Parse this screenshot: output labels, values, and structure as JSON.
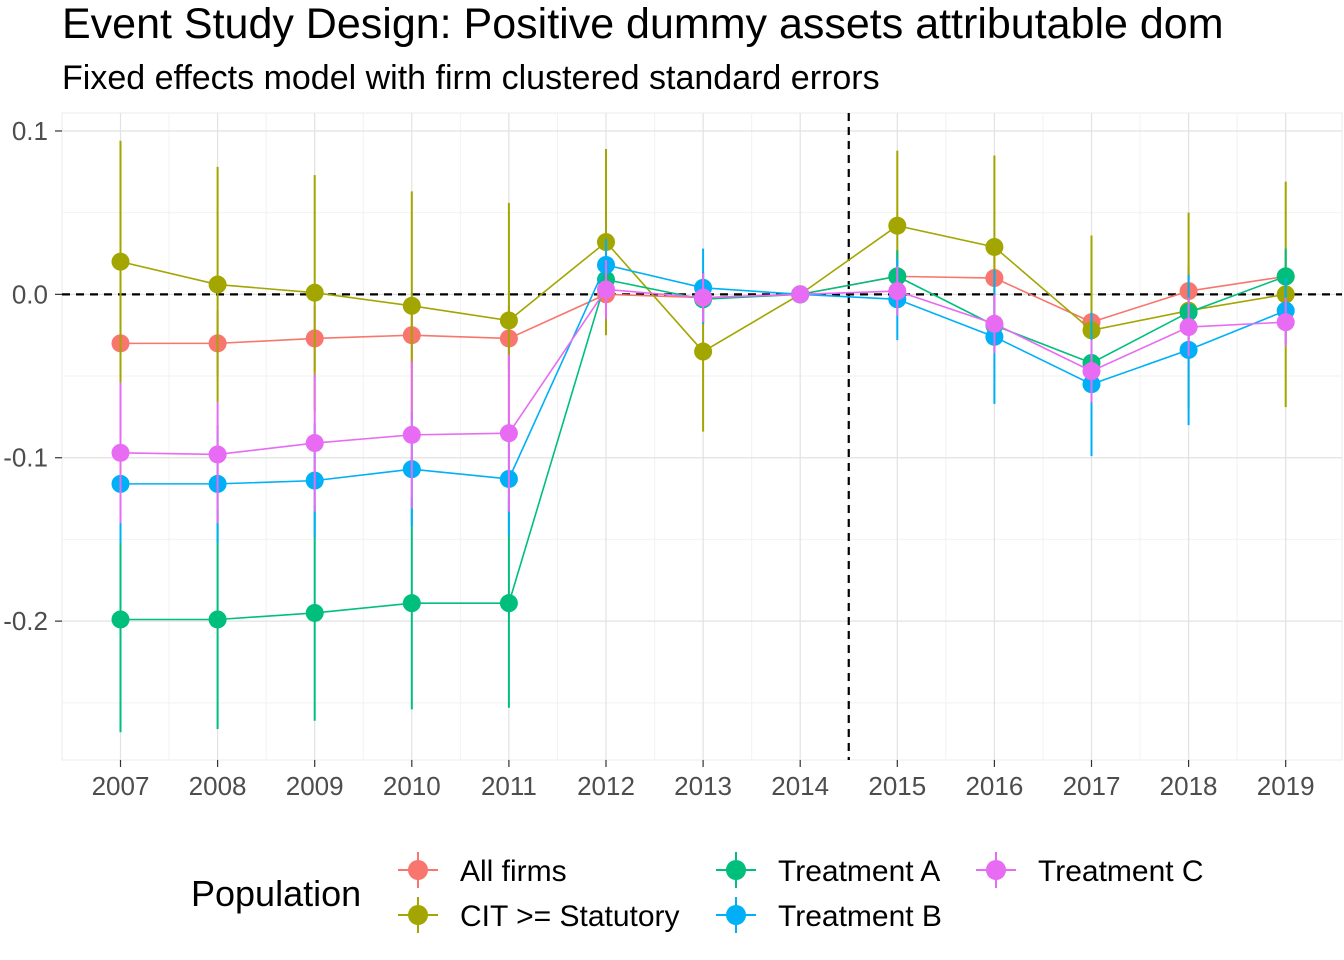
{
  "chart_data": {
    "type": "line",
    "title": "Event Study Design: Positive dummy assets attributable dom",
    "subtitle": "Fixed effects model with firm clustered standard errors",
    "xlabel": "",
    "ylabel": "",
    "categories": [
      "2007",
      "2008",
      "2009",
      "2010",
      "2011",
      "2012",
      "2013",
      "2014",
      "2015",
      "2016",
      "2017",
      "2018",
      "2019"
    ],
    "y_ticks": [
      {
        "value": 0.1,
        "label": "0.1"
      },
      {
        "value": 0.0,
        "label": "0.0"
      },
      {
        "value": -0.1,
        "label": "-0.1"
      },
      {
        "value": -0.2,
        "label": "-0.2"
      }
    ],
    "ylim": [
      -0.285,
      0.111
    ],
    "grid": true,
    "reference_lines": {
      "hline_y": 0,
      "vline_between": [
        "2014",
        "2015"
      ],
      "style": "dashed"
    },
    "legend": {
      "title": "Population",
      "position": "bottom",
      "layout": [
        [
          "All firms",
          "CIT >= Statutory"
        ],
        [
          "Treatment A",
          "Treatment B"
        ],
        [
          "Treatment C"
        ]
      ]
    },
    "series": [
      {
        "name": "All firms",
        "color": "#F8766D",
        "values": [
          -0.03,
          -0.03,
          -0.027,
          -0.025,
          -0.027,
          0.0,
          -0.002,
          0.0,
          0.011,
          0.01,
          -0.017,
          0.002,
          0.011
        ],
        "lower": [
          -0.05,
          -0.05,
          -0.047,
          -0.045,
          -0.047,
          -0.015,
          -0.017,
          0.0,
          -0.005,
          -0.005,
          -0.035,
          -0.013,
          -0.005
        ],
        "upper": [
          -0.01,
          -0.01,
          -0.007,
          -0.005,
          -0.007,
          0.015,
          0.013,
          0.0,
          0.027,
          0.025,
          0.001,
          0.017,
          0.027
        ]
      },
      {
        "name": "CIT >= Statutory",
        "color": "#A3A500",
        "values": [
          0.02,
          0.006,
          0.001,
          -0.007,
          -0.016,
          0.032,
          -0.035,
          0.0,
          0.042,
          0.029,
          -0.022,
          -0.01,
          0.0
        ],
        "lower": [
          -0.054,
          -0.066,
          -0.071,
          -0.077,
          -0.088,
          -0.025,
          -0.084,
          0.0,
          -0.004,
          -0.027,
          -0.08,
          -0.07,
          -0.069
        ],
        "upper": [
          0.094,
          0.078,
          0.073,
          0.063,
          0.056,
          0.089,
          0.014,
          0.0,
          0.088,
          0.085,
          0.036,
          0.05,
          0.069
        ]
      },
      {
        "name": "Treatment A",
        "color": "#00BF7D",
        "values": [
          -0.199,
          -0.199,
          -0.195,
          -0.189,
          -0.189,
          0.009,
          -0.003,
          0.0,
          0.011,
          -0.019,
          -0.042,
          -0.011,
          0.011
        ],
        "lower": [
          -0.268,
          -0.266,
          -0.261,
          -0.254,
          -0.253,
          -0.009,
          -0.018,
          0.0,
          -0.005,
          -0.036,
          -0.06,
          -0.029,
          -0.006
        ],
        "upper": [
          -0.13,
          -0.132,
          -0.129,
          -0.124,
          -0.125,
          0.027,
          0.012,
          0.0,
          0.027,
          -0.002,
          -0.024,
          0.007,
          0.028
        ]
      },
      {
        "name": "Treatment B",
        "color": "#00B0F6",
        "values": [
          -0.116,
          -0.116,
          -0.114,
          -0.107,
          -0.113,
          0.018,
          0.004,
          0.0,
          -0.003,
          -0.026,
          -0.055,
          -0.034,
          -0.01
        ],
        "lower": [
          -0.152,
          -0.152,
          -0.149,
          -0.142,
          -0.148,
          0.002,
          -0.018,
          0.0,
          -0.028,
          -0.067,
          -0.099,
          -0.08,
          -0.03
        ],
        "upper": [
          -0.08,
          -0.08,
          -0.079,
          -0.072,
          -0.078,
          0.034,
          0.028,
          0.0,
          0.022,
          0.015,
          -0.011,
          0.012,
          0.01
        ]
      },
      {
        "name": "Treatment C",
        "color": "#E76BF3",
        "values": [
          -0.097,
          -0.098,
          -0.091,
          -0.086,
          -0.085,
          0.003,
          -0.002,
          0.0,
          0.002,
          -0.018,
          -0.047,
          -0.02,
          -0.017
        ],
        "lower": [
          -0.14,
          -0.14,
          -0.133,
          -0.131,
          -0.133,
          -0.015,
          -0.017,
          0.0,
          -0.013,
          -0.036,
          -0.066,
          -0.038,
          -0.032
        ],
        "upper": [
          -0.054,
          -0.066,
          -0.049,
          -0.041,
          -0.037,
          0.021,
          0.013,
          0.0,
          0.017,
          0.0,
          -0.028,
          -0.002,
          -0.002
        ]
      }
    ]
  }
}
